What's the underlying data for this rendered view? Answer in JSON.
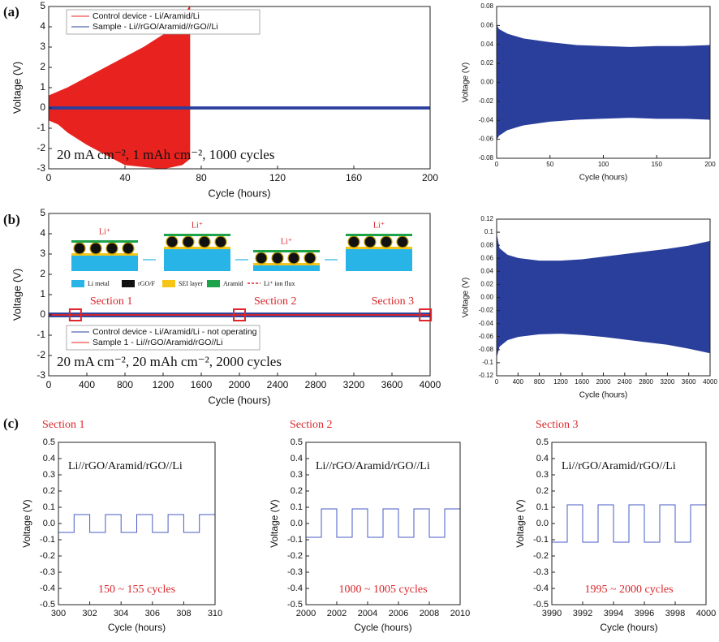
{
  "chart_data": [
    {
      "type": "area",
      "panel_label": "(a)",
      "xlabel": "Cycle (hours)",
      "ylabel": "Voltage (V)",
      "xlim": [
        0,
        200
      ],
      "xticks": [
        0,
        40,
        80,
        120,
        160,
        200
      ],
      "ylim": [
        -3,
        5
      ],
      "yticks": [
        -3,
        -2,
        -1,
        0,
        1,
        2,
        3,
        4,
        5
      ],
      "legend": "upper left",
      "condition": "20 mA cm⁻², 1 mAh cm⁻², 1000 cycles",
      "series": [
        {
          "name": "Control device - Li/Aramid/Li",
          "color": "#e8231f",
          "x": [
            0,
            5,
            10,
            20,
            30,
            40,
            50,
            60,
            70,
            74
          ],
          "upper": [
            0.6,
            0.8,
            1.0,
            1.5,
            2.0,
            2.5,
            3.0,
            3.6,
            4.5,
            5
          ],
          "lower": [
            -0.6,
            -0.8,
            -1.2,
            -1.8,
            -2.3,
            -2.8,
            -2.9,
            -3,
            -2.8,
            -2.5
          ]
        },
        {
          "name": "Sample - Li//rGO/Aramid//rGO//Li",
          "color": "#2a3f9c",
          "x": [
            0,
            200
          ],
          "upper": [
            0.06,
            0.06
          ],
          "lower": [
            -0.06,
            -0.06
          ]
        }
      ]
    },
    {
      "type": "area",
      "xlabel": "Cycle (hours)",
      "ylabel": "Voltage (V)",
      "xlim": [
        0,
        200
      ],
      "xticks": [
        0,
        50,
        100,
        150,
        200
      ],
      "ylim": [
        -0.08,
        0.08
      ],
      "yticks": [
        -0.08,
        -0.06,
        -0.04,
        -0.02,
        {
          "value": 0,
          "label": "0.00"
        },
        0.02,
        0.04,
        0.06,
        0.08
      ],
      "series": [
        {
          "color": "#2a3f9c",
          "x": [
            0,
            2,
            10,
            25,
            50,
            75,
            100,
            125,
            150,
            175,
            200
          ],
          "upper": [
            0.06,
            0.056,
            0.051,
            0.046,
            0.042,
            0.039,
            0.038,
            0.037,
            0.038,
            0.038,
            0.039
          ],
          "lower": [
            -0.06,
            -0.056,
            -0.05,
            -0.045,
            -0.041,
            -0.039,
            -0.038,
            -0.037,
            -0.038,
            -0.038,
            -0.039
          ]
        }
      ]
    },
    {
      "type": "area",
      "panel_label": "(b)",
      "xlabel": "Cycle (hours)",
      "ylabel": "Voltage (V)",
      "xlim": [
        0,
        4000
      ],
      "xticks": [
        0,
        400,
        800,
        1200,
        1600,
        2000,
        2400,
        2800,
        3200,
        3600,
        4000
      ],
      "ylim": [
        -3,
        5
      ],
      "yticks": [
        -3,
        -2,
        -1,
        0,
        1,
        2,
        3,
        4,
        5
      ],
      "legend": "lower left",
      "condition": "20 mA cm⁻², 20 mAh cm⁻², 2000 cycles",
      "sections": [
        {
          "label": "Section 1",
          "x": 280
        },
        {
          "label": "Section 2",
          "x": 2000
        },
        {
          "label": "Section 3",
          "x": 3950
        }
      ],
      "inset": {
        "ion_labels": [
          "Li⁺",
          "Li⁺",
          "Li⁺",
          "Li⁺"
        ],
        "legend": [
          "Li metal",
          "rGO/F",
          "SEI layer",
          "Aramid",
          "Li⁺ ion flux"
        ]
      },
      "series": [
        {
          "name": "Control device - Li/Aramid/Li - not operating",
          "color": "#2a3f9c",
          "x": [
            0,
            4000
          ],
          "upper": [
            0.1,
            0.1
          ],
          "lower": [
            -0.1,
            -0.1
          ]
        },
        {
          "name": "Sample 1 - Li//rGO/Aramid/rGO//Li",
          "color": "#e8231f",
          "x": [
            0,
            4000
          ],
          "upper": [
            0.02,
            0.02
          ],
          "lower": [
            -0.02,
            -0.02
          ]
        }
      ]
    },
    {
      "type": "area",
      "xlabel": "Cycle (hours)",
      "ylabel": "Voltage (V)",
      "xlim": [
        0,
        4000
      ],
      "xticks": [
        0,
        400,
        800,
        1200,
        1600,
        2000,
        2400,
        2800,
        3200,
        3600,
        4000
      ],
      "ylim": [
        -0.12,
        0.12
      ],
      "yticks": [
        -0.12,
        -0.1,
        -0.08,
        -0.06,
        -0.04,
        -0.02,
        {
          "value": 0,
          "label": "0.00"
        },
        0.02,
        0.04,
        0.06,
        0.08,
        0.1,
        0.12
      ],
      "series": [
        {
          "color": "#2a3f9c",
          "x": [
            0,
            50,
            200,
            400,
            800,
            1200,
            1600,
            2000,
            2400,
            2800,
            3200,
            3600,
            4000
          ],
          "upper": [
            0.095,
            0.075,
            0.065,
            0.06,
            0.056,
            0.056,
            0.058,
            0.062,
            0.066,
            0.07,
            0.074,
            0.079,
            0.086
          ],
          "lower": [
            -0.09,
            -0.075,
            -0.065,
            -0.06,
            -0.056,
            -0.055,
            -0.057,
            -0.06,
            -0.064,
            -0.068,
            -0.072,
            -0.078,
            -0.085
          ]
        }
      ]
    },
    {
      "type": "line",
      "panel_label": "(c)",
      "title": "Section 1",
      "cell": "Li//rGO/Aramid/rGO//Li",
      "cycles_label": "150 ~ 155 cycles",
      "xlabel": "Cycle (hours)",
      "ylabel": "Voltage (V)",
      "xlim": [
        300,
        310
      ],
      "xticks": [
        300,
        302,
        304,
        306,
        308,
        310
      ],
      "ylim": [
        -0.5,
        0.5
      ],
      "yticks": [
        -0.5,
        -0.4,
        -0.3,
        -0.2,
        -0.1,
        {
          "value": 0,
          "label": "0.0"
        },
        0.1,
        0.2,
        0.3,
        0.4,
        0.5
      ],
      "series": [
        {
          "color": "#4a5bc4",
          "x": [
            300,
            301,
            301,
            302,
            302,
            303,
            303,
            304,
            304,
            305,
            305,
            306,
            306,
            307,
            307,
            308,
            308,
            309,
            309,
            310
          ],
          "values": [
            -0.055,
            -0.055,
            0.055,
            0.055,
            -0.055,
            -0.055,
            0.055,
            0.055,
            -0.055,
            -0.055,
            0.055,
            0.055,
            -0.055,
            -0.055,
            0.055,
            0.055,
            -0.055,
            -0.055,
            0.055,
            0.055
          ]
        }
      ]
    },
    {
      "type": "line",
      "title": "Section 2",
      "cell": "Li//rGO/Aramid/rGO//Li",
      "cycles_label": "1000 ~ 1005 cycles",
      "xlabel": "Cycle (hours)",
      "ylabel": "Voltage (V)",
      "xlim": [
        2000,
        2010
      ],
      "xticks": [
        2000,
        2002,
        2004,
        2006,
        2008,
        2010
      ],
      "ylim": [
        -0.5,
        0.5
      ],
      "yticks": [
        -0.5,
        -0.4,
        -0.3,
        -0.2,
        -0.1,
        {
          "value": 0,
          "label": "0.0"
        },
        0.1,
        0.2,
        0.3,
        0.4,
        0.5
      ],
      "series": [
        {
          "color": "#4a5bc4",
          "x": [
            2000,
            2001,
            2001,
            2002,
            2002,
            2003,
            2003,
            2004,
            2004,
            2005,
            2005,
            2006,
            2006,
            2007,
            2007,
            2008,
            2008,
            2009,
            2009,
            2010
          ],
          "values": [
            -0.085,
            -0.085,
            0.09,
            0.09,
            -0.085,
            -0.085,
            0.09,
            0.09,
            -0.085,
            -0.085,
            0.09,
            0.09,
            -0.085,
            -0.085,
            0.09,
            0.09,
            -0.085,
            -0.085,
            0.09,
            0.09
          ]
        }
      ]
    },
    {
      "type": "line",
      "title": "Section 3",
      "cell": "Li//rGO/Aramid/rGO//Li",
      "cycles_label": "1995 ~ 2000 cycles",
      "xlabel": "Cycle (hours)",
      "ylabel": "Voltage (V)",
      "xlim": [
        3990,
        4000
      ],
      "xticks": [
        3990,
        3992,
        3994,
        3996,
        3998,
        4000
      ],
      "ylim": [
        -0.5,
        0.5
      ],
      "yticks": [
        -0.5,
        -0.4,
        -0.3,
        -0.2,
        -0.1,
        {
          "value": 0,
          "label": "0.0"
        },
        0.1,
        0.2,
        0.3,
        0.4,
        0.5
      ],
      "series": [
        {
          "color": "#4a5bc4",
          "x": [
            3990,
            3991,
            3991,
            3992,
            3992,
            3993,
            3993,
            3994,
            3994,
            3995,
            3995,
            3996,
            3996,
            3997,
            3997,
            3998,
            3998,
            3999,
            3999,
            4000
          ],
          "values": [
            -0.115,
            -0.115,
            0.115,
            0.115,
            -0.115,
            -0.115,
            0.115,
            0.115,
            -0.115,
            -0.115,
            0.115,
            0.115,
            -0.115,
            -0.115,
            0.115,
            0.115,
            -0.115,
            -0.115,
            0.115,
            0.115
          ]
        }
      ]
    }
  ]
}
